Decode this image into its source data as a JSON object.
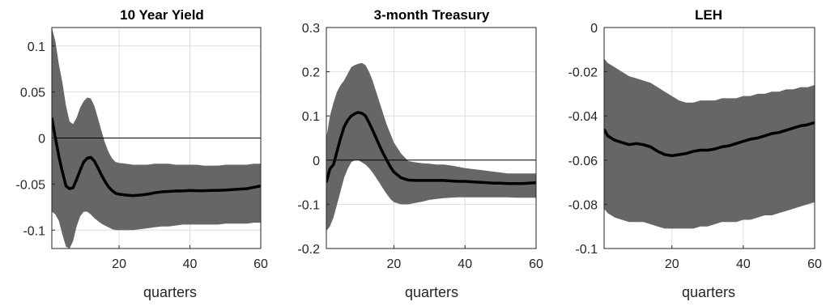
{
  "chart_data": [
    {
      "type": "area",
      "title": "10 Year Yield",
      "xlabel": "quarters",
      "ylabel": "",
      "xlim": [
        1,
        60
      ],
      "ylim": [
        -0.12,
        0.12
      ],
      "xticks": [
        20,
        40,
        60
      ],
      "xtick_labels": [
        "20",
        "40",
        "60"
      ],
      "yticks": [
        0.1,
        0.05,
        0,
        -0.05,
        -0.1
      ],
      "ytick_labels": [
        "0.1",
        "0.05",
        "0",
        "-0.05",
        "-0.1"
      ],
      "grid": true,
      "zero_line": true,
      "x": [
        1,
        2,
        3,
        4,
        5,
        6,
        7,
        8,
        9,
        10,
        11,
        12,
        13,
        14,
        15,
        16,
        17,
        18,
        19,
        20,
        22,
        24,
        26,
        28,
        30,
        32,
        34,
        36,
        38,
        40,
        42,
        44,
        46,
        48,
        50,
        52,
        54,
        56,
        58,
        60
      ],
      "series": [
        {
          "role": "median",
          "color": "#000000",
          "values": [
            0.022,
            0.0,
            -0.02,
            -0.037,
            -0.052,
            -0.055,
            -0.054,
            -0.045,
            -0.035,
            -0.026,
            -0.022,
            -0.021,
            -0.025,
            -0.032,
            -0.04,
            -0.047,
            -0.053,
            -0.057,
            -0.06,
            -0.061,
            -0.062,
            -0.0625,
            -0.062,
            -0.061,
            -0.0595,
            -0.0585,
            -0.058,
            -0.0575,
            -0.0575,
            -0.057,
            -0.0572,
            -0.0572,
            -0.057,
            -0.0568,
            -0.0565,
            -0.056,
            -0.0555,
            -0.055,
            -0.0535,
            -0.052
          ]
        },
        {
          "role": "upper",
          "color": "#666666",
          "values": [
            0.12,
            0.105,
            0.08,
            0.06,
            0.035,
            0.018,
            0.015,
            0.022,
            0.033,
            0.04,
            0.044,
            0.043,
            0.035,
            0.022,
            0.008,
            -0.005,
            -0.015,
            -0.022,
            -0.026,
            -0.027,
            -0.028,
            -0.029,
            -0.029,
            -0.029,
            -0.028,
            -0.028,
            -0.028,
            -0.029,
            -0.029,
            -0.029,
            -0.029,
            -0.03,
            -0.03,
            -0.03,
            -0.029,
            -0.029,
            -0.029,
            -0.029,
            -0.028,
            -0.028
          ]
        },
        {
          "role": "lower",
          "color": "#666666",
          "values": [
            -0.08,
            -0.083,
            -0.09,
            -0.105,
            -0.118,
            -0.12,
            -0.112,
            -0.096,
            -0.085,
            -0.08,
            -0.08,
            -0.083,
            -0.087,
            -0.09,
            -0.093,
            -0.095,
            -0.097,
            -0.099,
            -0.1,
            -0.1,
            -0.1,
            -0.1,
            -0.099,
            -0.098,
            -0.097,
            -0.096,
            -0.096,
            -0.095,
            -0.094,
            -0.094,
            -0.094,
            -0.094,
            -0.094,
            -0.094,
            -0.093,
            -0.093,
            -0.093,
            -0.093,
            -0.092,
            -0.092
          ]
        }
      ]
    },
    {
      "type": "area",
      "title": "3-month Treasury",
      "xlabel": "quarters",
      "ylabel": "",
      "xlim": [
        1,
        60
      ],
      "ylim": [
        -0.2,
        0.3
      ],
      "xticks": [
        20,
        40,
        60
      ],
      "xtick_labels": [
        "20",
        "40",
        "60"
      ],
      "yticks": [
        0.3,
        0.2,
        0.1,
        0,
        -0.1,
        -0.2
      ],
      "ytick_labels": [
        "0.3",
        "0.2",
        "0.1",
        "0",
        "-0.1",
        "-0.2"
      ],
      "grid": true,
      "zero_line": true,
      "x": [
        1,
        2,
        3,
        4,
        5,
        6,
        7,
        8,
        9,
        10,
        11,
        12,
        13,
        14,
        15,
        16,
        17,
        18,
        19,
        20,
        22,
        24,
        26,
        28,
        30,
        32,
        34,
        36,
        38,
        40,
        42,
        44,
        46,
        48,
        50,
        52,
        54,
        56,
        58,
        60
      ],
      "series": [
        {
          "role": "median",
          "color": "#000000",
          "values": [
            -0.05,
            -0.02,
            -0.01,
            0.02,
            0.05,
            0.075,
            0.09,
            0.1,
            0.105,
            0.108,
            0.106,
            0.1,
            0.085,
            0.068,
            0.05,
            0.032,
            0.015,
            0.0,
            -0.015,
            -0.027,
            -0.04,
            -0.045,
            -0.046,
            -0.046,
            -0.046,
            -0.046,
            -0.046,
            -0.047,
            -0.048,
            -0.048,
            -0.049,
            -0.05,
            -0.051,
            -0.052,
            -0.052,
            -0.053,
            -0.053,
            -0.053,
            -0.052,
            -0.051
          ]
        },
        {
          "role": "upper",
          "color": "#666666",
          "values": [
            0.05,
            0.1,
            0.13,
            0.155,
            0.17,
            0.18,
            0.195,
            0.21,
            0.215,
            0.218,
            0.22,
            0.215,
            0.2,
            0.18,
            0.155,
            0.13,
            0.105,
            0.08,
            0.06,
            0.04,
            0.015,
            -0.002,
            -0.005,
            -0.007,
            -0.008,
            -0.01,
            -0.01,
            -0.012,
            -0.015,
            -0.018,
            -0.02,
            -0.022,
            -0.024,
            -0.026,
            -0.028,
            -0.03,
            -0.03,
            -0.03,
            -0.03,
            -0.03
          ]
        },
        {
          "role": "lower",
          "color": "#666666",
          "values": [
            -0.16,
            -0.15,
            -0.13,
            -0.1,
            -0.07,
            -0.04,
            -0.02,
            -0.005,
            0.0,
            0.0,
            -0.005,
            -0.01,
            -0.018,
            -0.028,
            -0.04,
            -0.052,
            -0.065,
            -0.077,
            -0.088,
            -0.095,
            -0.1,
            -0.1,
            -0.097,
            -0.094,
            -0.09,
            -0.088,
            -0.086,
            -0.085,
            -0.084,
            -0.084,
            -0.084,
            -0.084,
            -0.084,
            -0.084,
            -0.084,
            -0.084,
            -0.085,
            -0.085,
            -0.085,
            -0.085
          ]
        }
      ]
    },
    {
      "type": "area",
      "title": "LEH",
      "xlabel": "quarters",
      "ylabel": "",
      "xlim": [
        1,
        60
      ],
      "ylim": [
        -0.1,
        0.0
      ],
      "xticks": [
        20,
        40,
        60
      ],
      "xtick_labels": [
        "20",
        "40",
        "60"
      ],
      "yticks": [
        0,
        -0.02,
        -0.04,
        -0.06,
        -0.08,
        -0.1
      ],
      "ytick_labels": [
        "0",
        "-0.02",
        "-0.04",
        "-0.06",
        "-0.08",
        "-0.1"
      ],
      "grid": true,
      "zero_line": false,
      "x": [
        1,
        2,
        4,
        6,
        8,
        10,
        12,
        14,
        16,
        18,
        20,
        22,
        24,
        26,
        28,
        30,
        32,
        34,
        36,
        38,
        40,
        42,
        44,
        46,
        48,
        50,
        52,
        54,
        56,
        58,
        60
      ],
      "series": [
        {
          "role": "median",
          "color": "#000000",
          "values": [
            -0.046,
            -0.049,
            -0.051,
            -0.052,
            -0.053,
            -0.0525,
            -0.053,
            -0.054,
            -0.056,
            -0.0575,
            -0.058,
            -0.0575,
            -0.057,
            -0.056,
            -0.0555,
            -0.0555,
            -0.055,
            -0.054,
            -0.0535,
            -0.0525,
            -0.0515,
            -0.0505,
            -0.05,
            -0.049,
            -0.048,
            -0.0475,
            -0.0465,
            -0.0455,
            -0.0445,
            -0.044,
            -0.043
          ]
        },
        {
          "role": "upper",
          "color": "#666666",
          "values": [
            -0.014,
            -0.016,
            -0.018,
            -0.02,
            -0.022,
            -0.023,
            -0.024,
            -0.025,
            -0.027,
            -0.029,
            -0.031,
            -0.033,
            -0.034,
            -0.034,
            -0.033,
            -0.033,
            -0.033,
            -0.032,
            -0.032,
            -0.032,
            -0.031,
            -0.031,
            -0.03,
            -0.03,
            -0.029,
            -0.029,
            -0.028,
            -0.028,
            -0.027,
            -0.027,
            -0.026
          ]
        },
        {
          "role": "lower",
          "color": "#666666",
          "values": [
            -0.082,
            -0.084,
            -0.086,
            -0.087,
            -0.088,
            -0.088,
            -0.088,
            -0.089,
            -0.09,
            -0.091,
            -0.091,
            -0.091,
            -0.091,
            -0.091,
            -0.09,
            -0.09,
            -0.089,
            -0.088,
            -0.088,
            -0.088,
            -0.087,
            -0.087,
            -0.086,
            -0.085,
            -0.085,
            -0.084,
            -0.083,
            -0.082,
            -0.081,
            -0.08,
            -0.079
          ]
        }
      ]
    }
  ]
}
